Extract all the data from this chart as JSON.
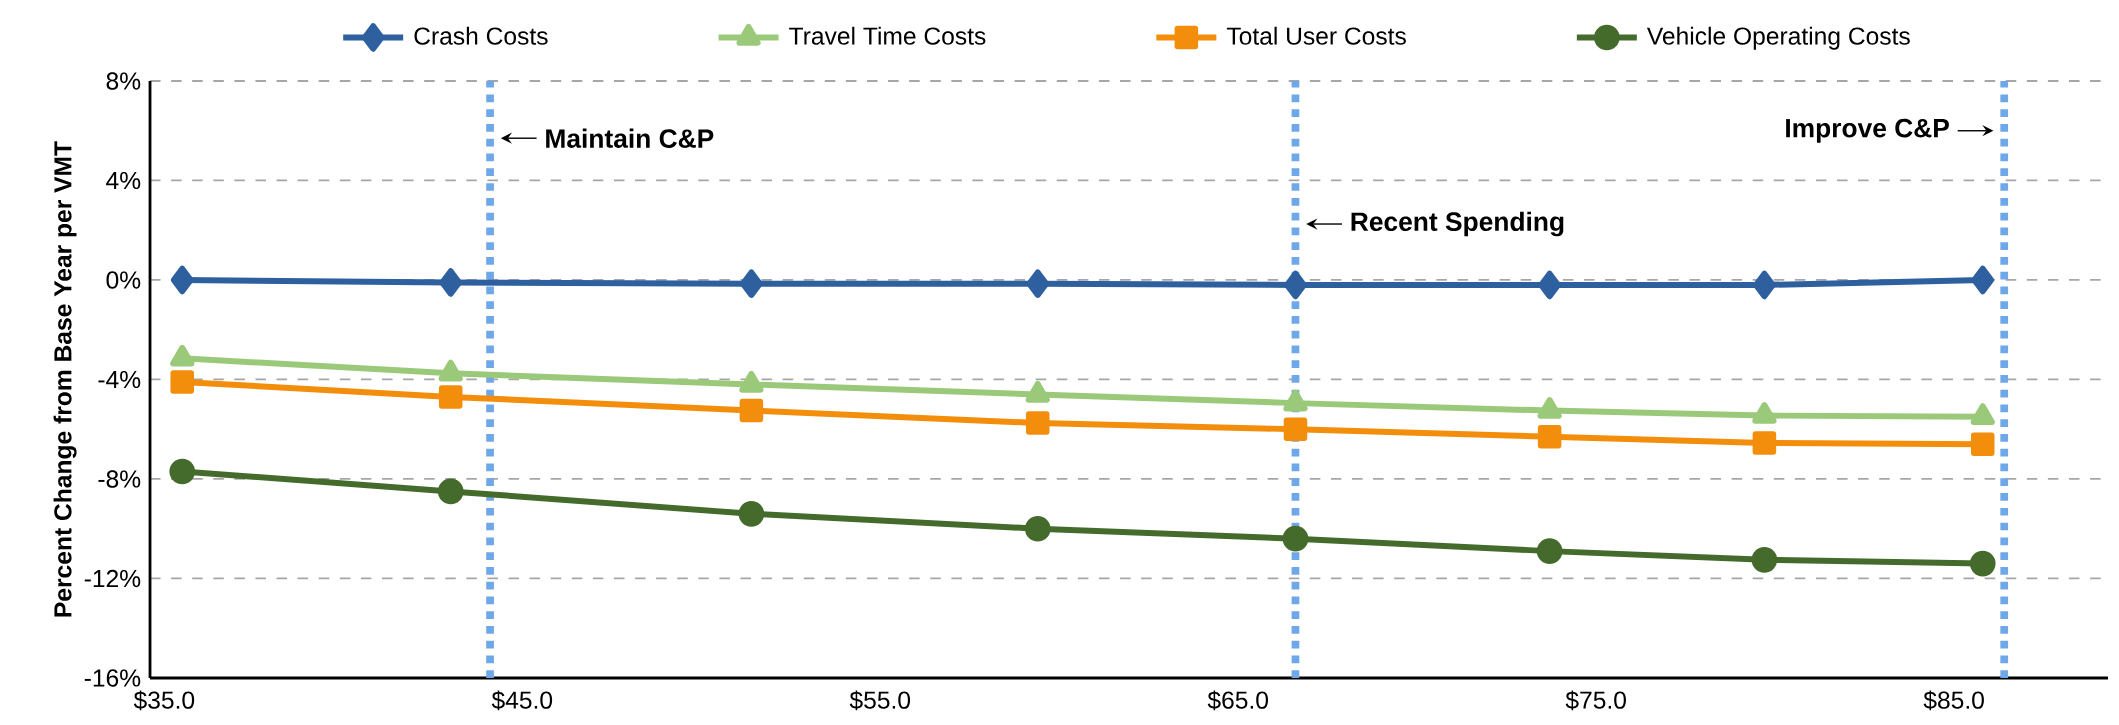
{
  "chart_data": {
    "type": "line",
    "ylabel": "Percent  Change from Base Year per VMT",
    "x": [
      35.5,
      43.0,
      51.4,
      59.4,
      66.6,
      73.7,
      79.7,
      85.8
    ],
    "series": [
      {
        "name": "Crash Costs",
        "color": "#2e5f9e",
        "marker": "diamond",
        "values": [
          0.0,
          -0.1,
          -0.15,
          -0.15,
          -0.2,
          -0.2,
          -0.2,
          0.0
        ]
      },
      {
        "name": "Travel Time Costs",
        "color": "#9bc97a",
        "marker": "triangle",
        "values": [
          -3.15,
          -3.75,
          -4.2,
          -4.6,
          -4.95,
          -5.25,
          -5.45,
          -5.5
        ]
      },
      {
        "name": "Total User Costs",
        "color": "#f28e0b",
        "marker": "square",
        "values": [
          -4.1,
          -4.7,
          -5.25,
          -5.75,
          -6.0,
          -6.3,
          -6.55,
          -6.6
        ]
      },
      {
        "name": "Vehicle Operating Costs",
        "color": "#446b2c",
        "marker": "circle",
        "values": [
          -7.7,
          -8.5,
          -9.4,
          -10.0,
          -10.4,
          -10.9,
          -11.25,
          -11.4
        ]
      }
    ],
    "xlim": [
      34.6,
      89.3
    ],
    "xticks": [
      {
        "value": 35,
        "label": "$35.0"
      },
      {
        "value": 45,
        "label": "$45.0"
      },
      {
        "value": 55,
        "label": "$55.0"
      },
      {
        "value": 65,
        "label": "$65.0"
      },
      {
        "value": 75,
        "label": "$75.0"
      },
      {
        "value": 85,
        "label": "$85.0"
      }
    ],
    "ylim": [
      -16,
      8
    ],
    "yticks": [
      {
        "value": -16,
        "label": "-16%"
      },
      {
        "value": -12,
        "label": "-12%"
      },
      {
        "value": -8,
        "label": "-8%"
      },
      {
        "value": -4,
        "label": "-4%"
      },
      {
        "value": 0,
        "label": "0%"
      },
      {
        "value": 4,
        "label": "4%"
      },
      {
        "value": 8,
        "label": "8%"
      }
    ],
    "ref_lines": [
      {
        "axis": "x",
        "value": 44.1,
        "label": "Maintain C&P",
        "color": "#6fa8e8",
        "line_style": "dotted"
      },
      {
        "axis": "x",
        "value": 66.6,
        "label": "Recent Spending",
        "color": "#6fa8e8",
        "line_style": "dotted"
      },
      {
        "axis": "x",
        "value": 86.4,
        "label": "Improve C&P",
        "color": "#6fa8e8",
        "line_style": "dotted"
      }
    ],
    "grid": "y",
    "legend": "top",
    "line_style": "solid"
  }
}
